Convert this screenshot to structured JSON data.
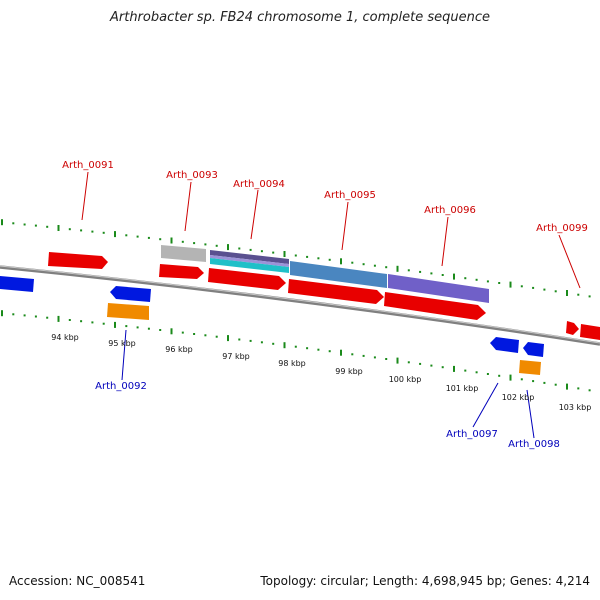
{
  "title": "Arthrobacter sp. FB24 chromosome 1, complete sequence",
  "footer": {
    "accession": "Accession: NC_008541",
    "summary": "Topology: circular; Length: 4,698,945 bp; Genes: 4,214"
  },
  "colors": {
    "forward_label": "#cc0000",
    "reverse_label": "#0000bb",
    "tick": "#1a8a1a",
    "backbone": "#808080",
    "cds": "#e80000",
    "reverse_cds": "#0018e0",
    "orange_feature": "#f08a00",
    "gray_feature": "#b4b4b4",
    "steel_feature": "#4a86c0",
    "purple_feature": "#7060c8"
  },
  "gene_labels": [
    {
      "name": "Arth_0091",
      "strand": "forward"
    },
    {
      "name": "Arth_0093",
      "strand": "forward"
    },
    {
      "name": "Arth_0094",
      "strand": "forward"
    },
    {
      "name": "Arth_0095",
      "strand": "forward"
    },
    {
      "name": "Arth_0096",
      "strand": "forward"
    },
    {
      "name": "Arth_0099",
      "strand": "forward"
    },
    {
      "name": "Arth_0092",
      "strand": "reverse"
    },
    {
      "name": "Arth_0097",
      "strand": "reverse"
    },
    {
      "name": "Arth_0098",
      "strand": "reverse"
    }
  ],
  "scale_labels": [
    "94 kbp",
    "95 kbp",
    "96 kbp",
    "97 kbp",
    "98 kbp",
    "99 kbp",
    "100 kbp",
    "101 kbp",
    "102 kbp",
    "103 kbp"
  ]
}
